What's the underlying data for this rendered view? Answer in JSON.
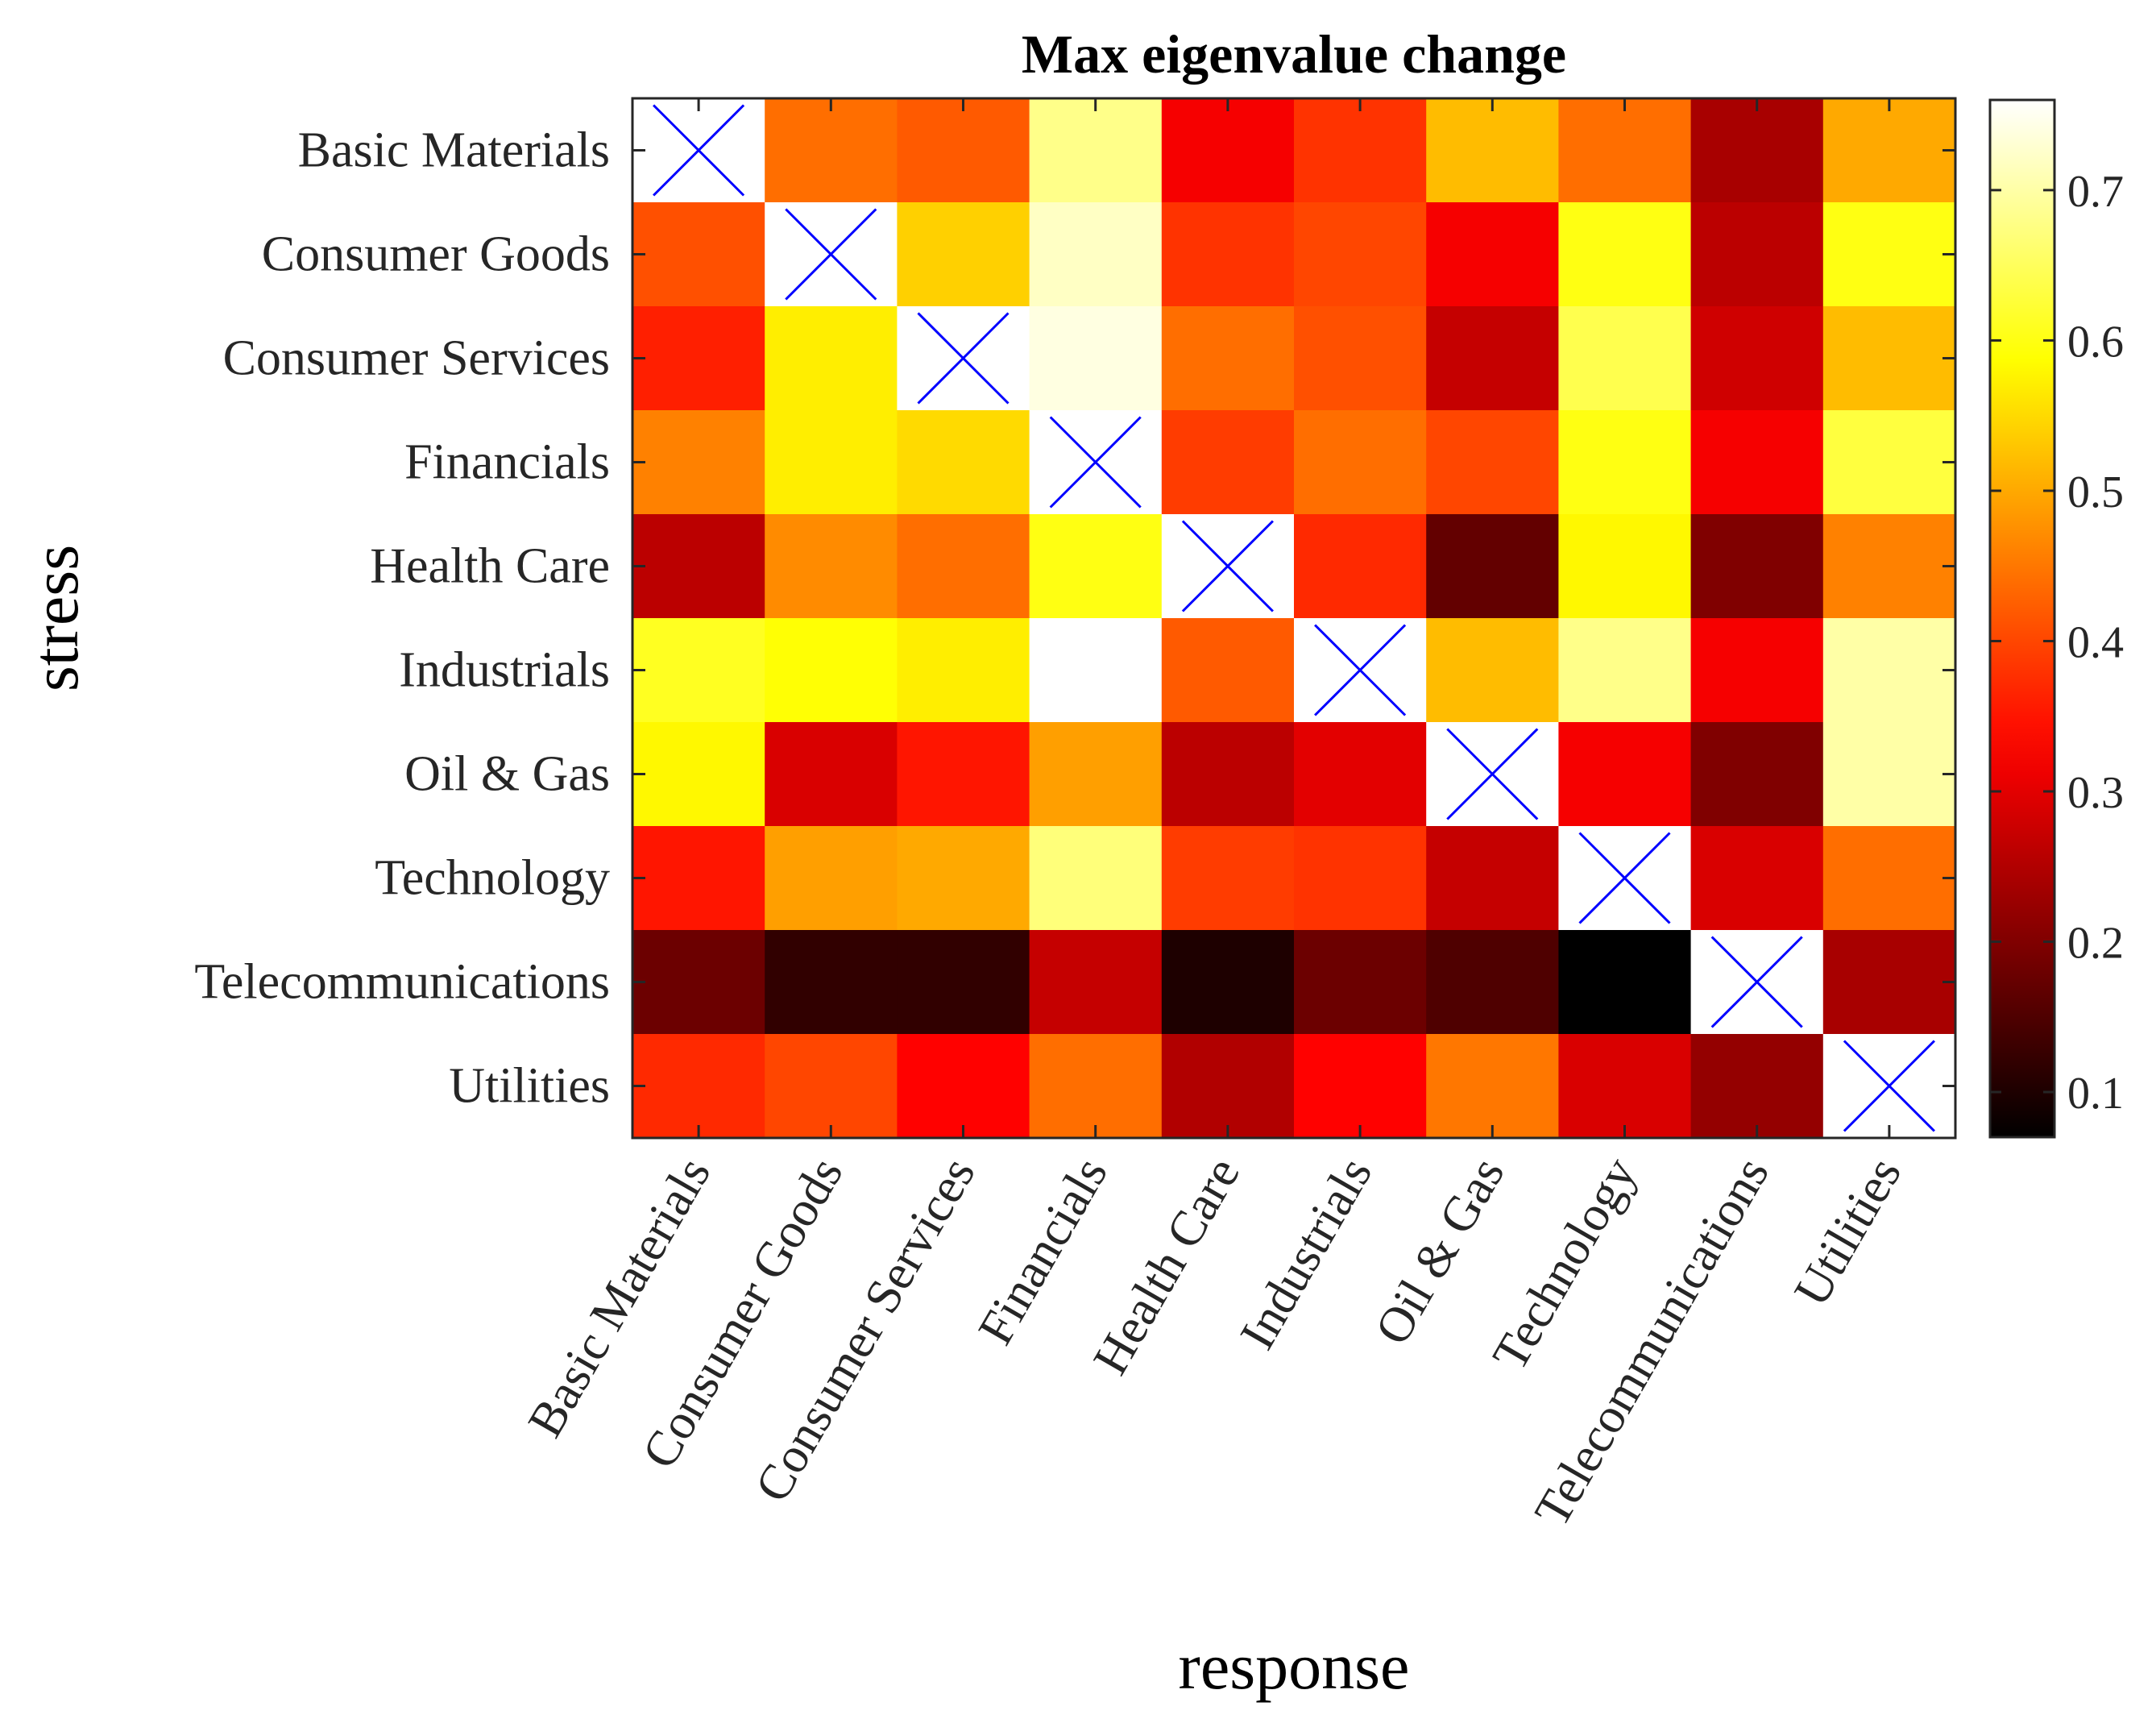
{
  "chart_data": {
    "type": "heatmap",
    "title": "Max eigenvalue change",
    "xlabel": "response",
    "ylabel": "stress",
    "x_categories": [
      "Basic Materials",
      "Consumer Goods",
      "Consumer Services",
      "Financials",
      "Health Care",
      "Industrials",
      "Oil & Gas",
      "Technology",
      "Telecommunications",
      "Utilities"
    ],
    "y_categories": [
      "Basic Materials",
      "Consumer Goods",
      "Consumer Services",
      "Financials",
      "Health Care",
      "Industrials",
      "Oil & Gas",
      "Technology",
      "Telecommunications",
      "Utilities"
    ],
    "values": [
      [
        null,
        0.44,
        0.42,
        0.68,
        0.32,
        0.38,
        0.52,
        0.44,
        0.24,
        0.5
      ],
      [
        0.41,
        null,
        0.54,
        0.72,
        0.38,
        0.4,
        0.32,
        0.6,
        0.26,
        0.6
      ],
      [
        0.36,
        0.57,
        null,
        0.74,
        0.44,
        0.41,
        0.27,
        0.64,
        0.28,
        0.52
      ],
      [
        0.46,
        0.57,
        0.55,
        null,
        0.39,
        0.44,
        0.4,
        0.6,
        0.32,
        0.63
      ],
      [
        0.26,
        0.47,
        0.44,
        0.6,
        null,
        0.37,
        0.17,
        0.58,
        0.2,
        0.46
      ],
      [
        0.61,
        0.59,
        0.57,
        0.76,
        0.42,
        null,
        0.52,
        0.68,
        0.32,
        0.7
      ],
      [
        0.58,
        0.29,
        0.35,
        0.49,
        0.26,
        0.3,
        null,
        0.32,
        0.2,
        0.7
      ],
      [
        0.35,
        0.49,
        0.5,
        0.67,
        0.39,
        0.38,
        0.27,
        null,
        0.29,
        0.44
      ],
      [
        0.18,
        0.12,
        0.12,
        0.27,
        0.1,
        0.18,
        0.15,
        0.07,
        null,
        0.24
      ],
      [
        0.37,
        0.4,
        0.33,
        0.44,
        0.25,
        0.33,
        0.45,
        0.29,
        0.22,
        null
      ]
    ],
    "diagonal_marker": "x",
    "diagonal_marker_color": "#0000ff",
    "colormap": "hot",
    "clim": [
      0.07,
      0.76
    ],
    "colorbar_ticks": [
      "0.1",
      "0.2",
      "0.3",
      "0.4",
      "0.5",
      "0.6",
      "0.7"
    ],
    "colorbar_tick_values": [
      0.1,
      0.2,
      0.3,
      0.4,
      0.5,
      0.6,
      0.7
    ],
    "colorbar_placement": "right",
    "grid": false
  }
}
